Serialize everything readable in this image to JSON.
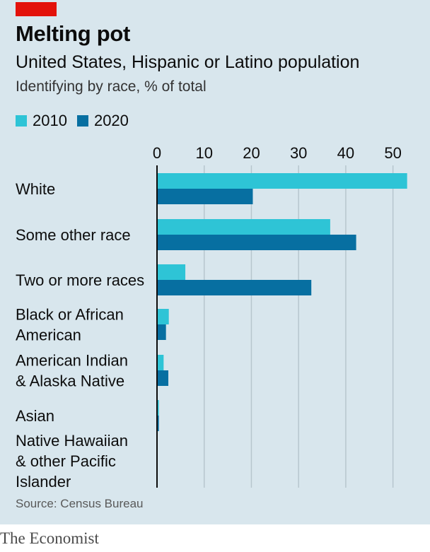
{
  "header": {
    "title": "Melting pot",
    "subtitle": "United States, Hispanic or Latino population",
    "subsubtitle": "Identifying by race, % of total"
  },
  "footer": {
    "source": "Source: Census Bureau",
    "brand": "The Economist"
  },
  "colors": {
    "background": "#d8e6ed",
    "accent_red": "#e3120b",
    "series_2010": "#2ec4d6",
    "series_2020": "#076fa1",
    "grid": "#b7c6ce",
    "axis": "#0c0c0c"
  },
  "chart_data": {
    "type": "bar",
    "orientation": "horizontal",
    "categories": [
      [
        "White"
      ],
      [
        "Some other race"
      ],
      [
        "Two or more races"
      ],
      [
        "Black or African",
        "American"
      ],
      [
        "American Indian",
        "& Alaska Native"
      ],
      [
        "Asian"
      ],
      [
        "Native Hawaiian",
        "& other Pacific",
        "Islander"
      ]
    ],
    "series": [
      {
        "name": "2010",
        "values": [
          53.0,
          36.7,
          6.0,
          2.5,
          1.4,
          0.4,
          0.1
        ]
      },
      {
        "name": "2020",
        "values": [
          20.3,
          42.2,
          32.7,
          1.9,
          2.4,
          0.4,
          0.1
        ]
      }
    ],
    "xlim": [
      0,
      55
    ],
    "xticks": [
      0,
      10,
      20,
      30,
      40,
      50
    ],
    "xaxis_position": "top",
    "grid": true,
    "legend": "top-left",
    "title": "Melting pot",
    "xlabel": "",
    "ylabel": ""
  }
}
